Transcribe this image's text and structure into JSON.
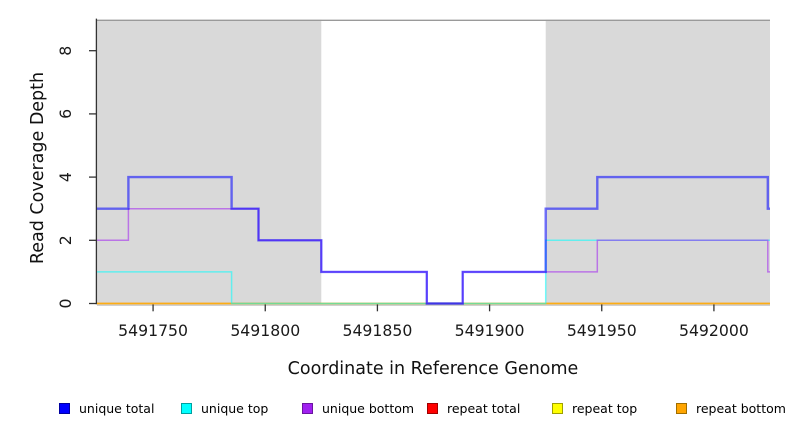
{
  "chart_data": {
    "type": "line",
    "subtype": "step",
    "title": "",
    "xlabel": "Coordinate in Reference Genome",
    "ylabel": "Read Coverage Depth",
    "xlim": [
      5491725,
      5492025
    ],
    "ylim": [
      0,
      9
    ],
    "x_ticks": [
      5491750,
      5491800,
      5491850,
      5491900,
      5491950,
      5492000
    ],
    "y_ticks": [
      0,
      2,
      4,
      6,
      8
    ],
    "grid": false,
    "legend_position": "bottom",
    "background_color": "#ffffff",
    "shaded_regions": [
      {
        "from": 5491725,
        "to": 5491825,
        "color": "#d9d9d9"
      },
      {
        "from": 5491925,
        "to": 5492025,
        "color": "#d9d9d9"
      }
    ],
    "region_border_color": "#9a9a9a",
    "line_alpha": 0.55,
    "series": [
      {
        "name": "repeat total",
        "color": "#FF0000",
        "width": 1.5,
        "points": [
          [
            5491725,
            0
          ],
          [
            5492025,
            0
          ]
        ]
      },
      {
        "name": "repeat top",
        "color": "#FFFF00",
        "width": 1.5,
        "points": [
          [
            5491725,
            0
          ],
          [
            5492025,
            0
          ]
        ]
      },
      {
        "name": "repeat bottom",
        "color": "#FFA500",
        "width": 1.8,
        "points": [
          [
            5491725,
            0
          ],
          [
            5492025,
            0
          ]
        ]
      },
      {
        "name": "unique top",
        "color": "#00FFFF",
        "width": 1.5,
        "points": [
          [
            5491725,
            1
          ],
          [
            5491785,
            0
          ],
          [
            5491925,
            2
          ],
          [
            5492025,
            2
          ]
        ]
      },
      {
        "name": "unique bottom",
        "color": "#A020F0",
        "width": 1.5,
        "points": [
          [
            5491725,
            2
          ],
          [
            5491739,
            3
          ],
          [
            5491797,
            2
          ],
          [
            5491825,
            1
          ],
          [
            5491872,
            0
          ],
          [
            5491888,
            1
          ],
          [
            5491948,
            2
          ],
          [
            5492024,
            1
          ],
          [
            5492025,
            1
          ]
        ]
      },
      {
        "name": "unique total",
        "color": "#0000FF",
        "width": 2.4,
        "points": [
          [
            5491725,
            3
          ],
          [
            5491739,
            4
          ],
          [
            5491785,
            3
          ],
          [
            5491797,
            2
          ],
          [
            5491825,
            1
          ],
          [
            5491872,
            0
          ],
          [
            5491888,
            1
          ],
          [
            5491925,
            3
          ],
          [
            5491948,
            4
          ],
          [
            5492024,
            3
          ],
          [
            5492025,
            3
          ]
        ]
      }
    ]
  },
  "legend": {
    "items": [
      {
        "label": "unique total",
        "color": "#0000FF",
        "border": "#0000A0"
      },
      {
        "label": "unique top",
        "color": "#00FFFF",
        "border": "#00A0A0"
      },
      {
        "label": "unique bottom",
        "color": "#A020F0",
        "border": "#6A15A0"
      },
      {
        "label": "repeat total",
        "color": "#FF0000",
        "border": "#A00000"
      },
      {
        "label": "repeat top",
        "color": "#FFFF00",
        "border": "#A0A000"
      },
      {
        "label": "repeat bottom",
        "color": "#FFA500",
        "border": "#A06E00"
      }
    ]
  }
}
